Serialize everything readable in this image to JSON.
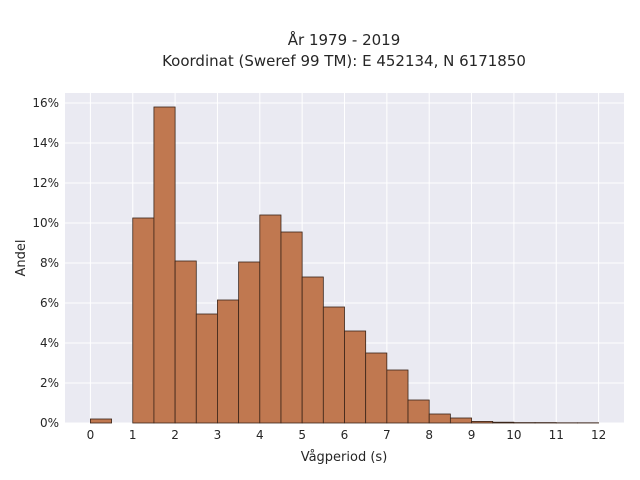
{
  "chart_data": {
    "type": "bar",
    "title_line1": "År 1979 - 2019",
    "title_line2": "Koordinat (Sweref 99 TM): E 452134, N 6171850",
    "xlabel": "Vågperiod (s)",
    "ylabel": "Andel",
    "xlim": [
      -0.6,
      12.6
    ],
    "ylim": [
      0,
      16.5
    ],
    "x_ticks": [
      0,
      1,
      2,
      3,
      4,
      5,
      6,
      7,
      8,
      9,
      10,
      11,
      12
    ],
    "x_tick_labels": [
      "0",
      "1",
      "2",
      "3",
      "4",
      "5",
      "6",
      "7",
      "8",
      "9",
      "10",
      "11",
      "12"
    ],
    "y_ticks": [
      0,
      2,
      4,
      6,
      8,
      10,
      12,
      14,
      16
    ],
    "y_tick_labels": [
      "0%",
      "2%",
      "4%",
      "6%",
      "8%",
      "10%",
      "12%",
      "14%",
      "16%"
    ],
    "bin_width": 0.5,
    "bin_starts": [
      0.0,
      0.5,
      1.0,
      1.5,
      2.0,
      2.5,
      3.0,
      3.5,
      4.0,
      4.5,
      5.0,
      5.5,
      6.0,
      6.5,
      7.0,
      7.5,
      8.0,
      8.5,
      9.0,
      9.5,
      10.0,
      10.5,
      11.0,
      11.5
    ],
    "values": [
      0.2,
      0.0,
      10.25,
      15.8,
      8.1,
      5.45,
      6.15,
      8.05,
      10.4,
      9.55,
      7.3,
      5.8,
      4.6,
      3.5,
      2.65,
      1.15,
      0.45,
      0.25,
      0.08,
      0.04,
      0.02,
      0.02,
      0.01,
      0.01
    ],
    "grid": true,
    "colors": {
      "bar_fill": "#c07850",
      "bar_edge": "#3a2418",
      "plot_bg": "#eaeaf2",
      "grid": "#ffffff"
    }
  }
}
